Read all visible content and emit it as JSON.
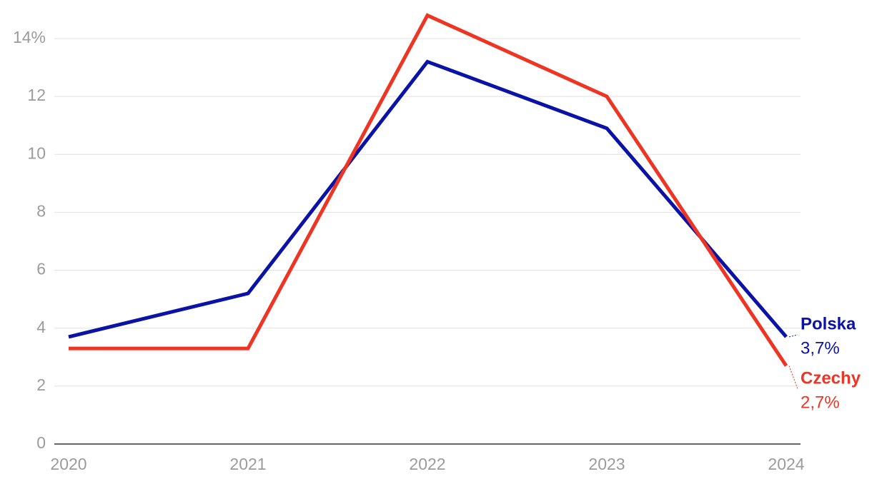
{
  "chart_data": {
    "type": "line",
    "categories": [
      "2020",
      "2021",
      "2022",
      "2023",
      "2024"
    ],
    "series": [
      {
        "name": "Polska",
        "color": "#0b13a6",
        "values": [
          3.7,
          5.2,
          13.2,
          10.9,
          3.7
        ],
        "value_labels": [
          null,
          null,
          null,
          null,
          "3,7%"
        ]
      },
      {
        "name": "Czechy",
        "color": "#ee3524",
        "values": [
          3.3,
          3.3,
          14.8,
          12.0,
          2.7
        ],
        "value_labels": [
          null,
          null,
          null,
          null,
          "2,7%"
        ]
      }
    ],
    "ylim": [
      0,
      15
    ],
    "yticks": [
      0,
      2,
      4,
      6,
      8,
      10,
      12,
      {
        "value": 14,
        "label": "14%"
      }
    ],
    "grid": true
  }
}
